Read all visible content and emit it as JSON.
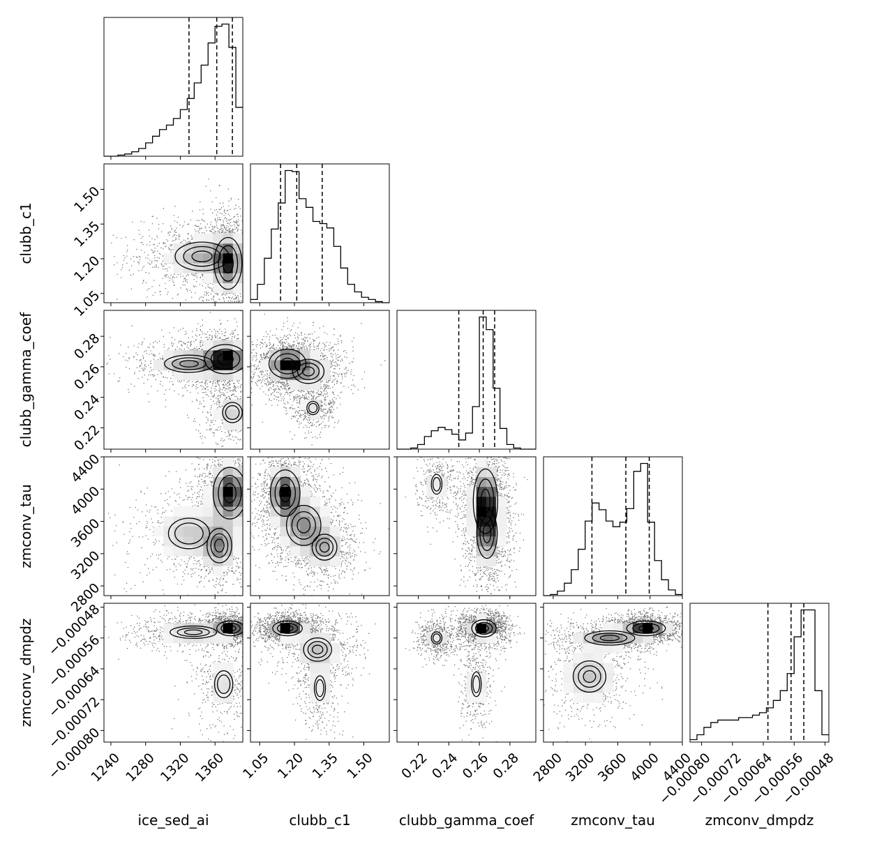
{
  "chart_data": {
    "type": "corner",
    "grid": false,
    "params": [
      {
        "name": "ice_sed_ai",
        "label": "ice_sed_ai",
        "range": [
          1232,
          1392
        ],
        "ticks": [
          1240,
          1280,
          1320,
          1360
        ],
        "tick_labels": [
          "1240",
          "1280",
          "1320",
          "1360"
        ],
        "quantiles": [
          1330,
          1362,
          1380
        ],
        "hist_edges": [
          1232,
          1240,
          1248,
          1256,
          1264,
          1272,
          1280,
          1288,
          1296,
          1304,
          1312,
          1320,
          1328,
          1336,
          1344,
          1352,
          1360,
          1368,
          1376,
          1384,
          1392
        ],
        "hist_counts": [
          0,
          0,
          1,
          2,
          4,
          7,
          12,
          18,
          24,
          28,
          34,
          42,
          52,
          66,
          82,
          102,
          117,
          119,
          98,
          44
        ]
      },
      {
        "name": "clubb_c1",
        "label": "clubb_c1",
        "range": [
          1.01,
          1.61
        ],
        "ticks": [
          1.05,
          1.2,
          1.35,
          1.5
        ],
        "tick_labels": [
          "1.05",
          "1.20",
          "1.35",
          "1.50"
        ],
        "quantiles": [
          1.14,
          1.21,
          1.32
        ],
        "hist_edges": [
          1.01,
          1.04,
          1.07,
          1.1,
          1.13,
          1.16,
          1.19,
          1.22,
          1.25,
          1.28,
          1.31,
          1.34,
          1.37,
          1.4,
          1.43,
          1.46,
          1.49,
          1.52,
          1.55,
          1.58,
          1.61
        ],
        "hist_counts": [
          3,
          17,
          41,
          68,
          92,
          122,
          121,
          96,
          88,
          75,
          73,
          69,
          52,
          32,
          17,
          10,
          5,
          3,
          1,
          0
        ]
      },
      {
        "name": "clubb_gamma_coef",
        "label": "clubb_gamma_coef",
        "range": [
          0.206,
          0.297
        ],
        "ticks": [
          0.22,
          0.24,
          0.26,
          0.28
        ],
        "tick_labels": [
          "0.22",
          "0.24",
          "0.26",
          "0.28"
        ],
        "quantiles": [
          0.2465,
          0.2625,
          0.27
        ],
        "hist_edges": [
          0.206,
          0.2105,
          0.215,
          0.2195,
          0.224,
          0.2285,
          0.233,
          0.2375,
          0.242,
          0.2465,
          0.251,
          0.2555,
          0.26,
          0.2645,
          0.269,
          0.2735,
          0.278,
          0.2825,
          0.287,
          0.2915,
          0.297
        ],
        "hist_counts": [
          0,
          0,
          1,
          4,
          11,
          16,
          19,
          17,
          13,
          8,
          14,
          37,
          115,
          104,
          53,
          18,
          4,
          1,
          0,
          0
        ]
      },
      {
        "name": "zmconv_tau",
        "label": "zmconv_tau",
        "range": [
          2680,
          4400
        ],
        "ticks": [
          2800,
          3200,
          3600,
          4000,
          4400
        ],
        "tick_labels": [
          "2800",
          "3200",
          "3600",
          "4000",
          "4400"
        ],
        "quantiles": [
          3280,
          3700,
          3990
        ],
        "hist_edges": [
          2680,
          2766,
          2852,
          2938,
          3024,
          3110,
          3196,
          3282,
          3368,
          3454,
          3540,
          3626,
          3712,
          3798,
          3884,
          3970,
          4056,
          4142,
          4228,
          4314,
          4400
        ],
        "hist_counts": [
          0,
          1,
          4,
          11,
          23,
          41,
          66,
          82,
          76,
          66,
          61,
          65,
          77,
          110,
          117,
          65,
          31,
          14,
          5,
          1
        ]
      },
      {
        "name": "zmconv_dmpdz",
        "label": "zmconv_dmpdz",
        "range": [
          -0.00083,
          -0.00047
        ],
        "ticks": [
          -0.0008,
          -0.00072,
          -0.00064,
          -0.00056,
          -0.00048
        ],
        "tick_labels": [
          "−0.00080",
          "−0.00072",
          "−0.00064",
          "−0.00056",
          "−0.00048"
        ],
        "quantiles": [
          -0.000628,
          -0.000568,
          -0.000535
        ],
        "hist_edges": [
          -0.00083,
          -0.000812,
          -0.000794,
          -0.000776,
          -0.000758,
          -0.00074,
          -0.000722,
          -0.000704,
          -0.000686,
          -0.000668,
          -0.00065,
          -0.000632,
          -0.000614,
          -0.000596,
          -0.000578,
          -0.00056,
          -0.000542,
          -0.000524,
          -0.000506,
          -0.000488,
          -0.00047
        ],
        "hist_counts": [
          1,
          3,
          6,
          8,
          9,
          9,
          9,
          10,
          10,
          11,
          12,
          14,
          17,
          21,
          28,
          43,
          54,
          54,
          21,
          3
        ]
      }
    ],
    "pair_modes": {
      "1-0": [
        {
          "x": 1375,
          "y": 1.18,
          "sx": 10,
          "sy": 0.07,
          "w": 1.0
        },
        {
          "x": 1345,
          "y": 1.21,
          "sx": 25,
          "sy": 0.05,
          "w": 0.6
        }
      ],
      "2-0": [
        {
          "x": 1372,
          "y": 0.265,
          "sx": 15,
          "sy": 0.006,
          "w": 1.0
        },
        {
          "x": 1330,
          "y": 0.262,
          "sx": 25,
          "sy": 0.005,
          "w": 0.5
        },
        {
          "x": 1380,
          "y": 0.23,
          "sx": 12,
          "sy": 0.007,
          "w": 0.35
        }
      ],
      "2-1": [
        {
          "x": 1.17,
          "y": 0.262,
          "sx": 0.05,
          "sy": 0.006,
          "w": 1.0
        },
        {
          "x": 1.26,
          "y": 0.257,
          "sx": 0.06,
          "sy": 0.007,
          "w": 0.5
        },
        {
          "x": 1.28,
          "y": 0.233,
          "sx": 0.03,
          "sy": 0.005,
          "w": 0.3
        }
      ],
      "3-0": [
        {
          "x": 1377,
          "y": 3950,
          "sx": 12,
          "sy": 200,
          "w": 1.0
        },
        {
          "x": 1365,
          "y": 3300,
          "sx": 12,
          "sy": 180,
          "w": 0.55
        },
        {
          "x": 1330,
          "y": 3450,
          "sx": 25,
          "sy": 200,
          "w": 0.35
        }
      ],
      "3-1": [
        {
          "x": 1.16,
          "y": 3950,
          "sx": 0.04,
          "sy": 180,
          "w": 1.0
        },
        {
          "x": 1.24,
          "y": 3550,
          "sx": 0.06,
          "sy": 200,
          "w": 0.6
        },
        {
          "x": 1.33,
          "y": 3280,
          "sx": 0.05,
          "sy": 150,
          "w": 0.45
        }
      ],
      "3-2": [
        {
          "x": 0.264,
          "y": 3850,
          "sx": 0.005,
          "sy": 250,
          "w": 1.0
        },
        {
          "x": 0.265,
          "y": 3450,
          "sx": 0.005,
          "sy": 230,
          "w": 0.7
        },
        {
          "x": 0.232,
          "y": 4060,
          "sx": 0.004,
          "sy": 140,
          "w": 0.3
        }
      ],
      "4-0": [
        {
          "x": 1378,
          "y": -0.000535,
          "sx": 10,
          "sy": 1.2e-05,
          "w": 1.0
        },
        {
          "x": 1335,
          "y": -0.000545,
          "sx": 25,
          "sy": 1.5e-05,
          "w": 0.45
        },
        {
          "x": 1370,
          "y": -0.00068,
          "sx": 12,
          "sy": 4e-05,
          "w": 0.3
        }
      ],
      "4-1": [
        {
          "x": 1.17,
          "y": -0.000535,
          "sx": 0.04,
          "sy": 1.2e-05,
          "w": 1.0
        },
        {
          "x": 1.3,
          "y": -0.00059,
          "sx": 0.06,
          "sy": 3e-05,
          "w": 0.4
        },
        {
          "x": 1.31,
          "y": -0.00069,
          "sx": 0.03,
          "sy": 4e-05,
          "w": 0.25
        }
      ],
      "4-2": [
        {
          "x": 0.263,
          "y": -0.000535,
          "sx": 0.005,
          "sy": 1.4e-05,
          "w": 1.0
        },
        {
          "x": 0.232,
          "y": -0.00056,
          "sx": 0.004,
          "sy": 1.8e-05,
          "w": 0.3
        },
        {
          "x": 0.258,
          "y": -0.00068,
          "sx": 0.004,
          "sy": 4e-05,
          "w": 0.25
        }
      ],
      "4-3": [
        {
          "x": 3950,
          "y": -0.000535,
          "sx": 150,
          "sy": 1.2e-05,
          "w": 1.0
        },
        {
          "x": 3500,
          "y": -0.00056,
          "sx": 250,
          "sy": 1.5e-05,
          "w": 0.6
        },
        {
          "x": 3250,
          "y": -0.00066,
          "sx": 200,
          "sy": 4e-05,
          "w": 0.4
        }
      ]
    }
  }
}
